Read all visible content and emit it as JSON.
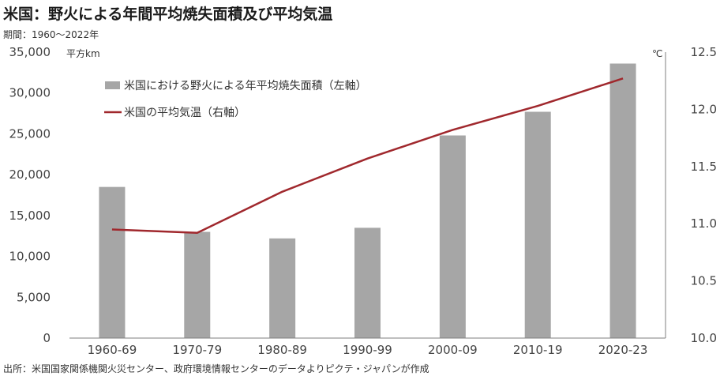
{
  "title": "米国：野火による年間平均焼失面積及び平均気温",
  "subtitle": "期間：1960～2022年",
  "source": "出所：米国国家関係機関火災センター、政府環境情報センターのデータよりピクテ・ジャパンが作成",
  "chart_data": {
    "type": "bar",
    "categories": [
      "1960-69",
      "1970-79",
      "1980-89",
      "1990-99",
      "2000-09",
      "2010-19",
      "2020-23"
    ],
    "series": [
      {
        "name": "米国における野火による年平均焼失面積（左軸）",
        "type": "bar",
        "axis": "left",
        "color": "#a6a6a6",
        "values": [
          18500,
          13000,
          12200,
          13500,
          24800,
          27700,
          33600
        ]
      },
      {
        "name": "米国の平均気温（右軸）",
        "type": "line",
        "axis": "right",
        "color": "#a0282d",
        "values": [
          10.95,
          10.92,
          11.28,
          11.57,
          11.82,
          12.03,
          12.27
        ]
      }
    ],
    "y_left": {
      "unit": "平方km",
      "ylim": [
        0,
        35000
      ],
      "ticks": [
        "0",
        "5,000",
        "10,000",
        "15,000",
        "20,000",
        "25,000",
        "30,000",
        "35,000"
      ]
    },
    "y_right": {
      "unit": "℃",
      "ylim": [
        10.0,
        12.5
      ],
      "ticks": [
        "10.0",
        "10.5",
        "11.0",
        "11.5",
        "12.0",
        "12.5"
      ]
    },
    "grid": false,
    "legend_position": "top-left"
  }
}
